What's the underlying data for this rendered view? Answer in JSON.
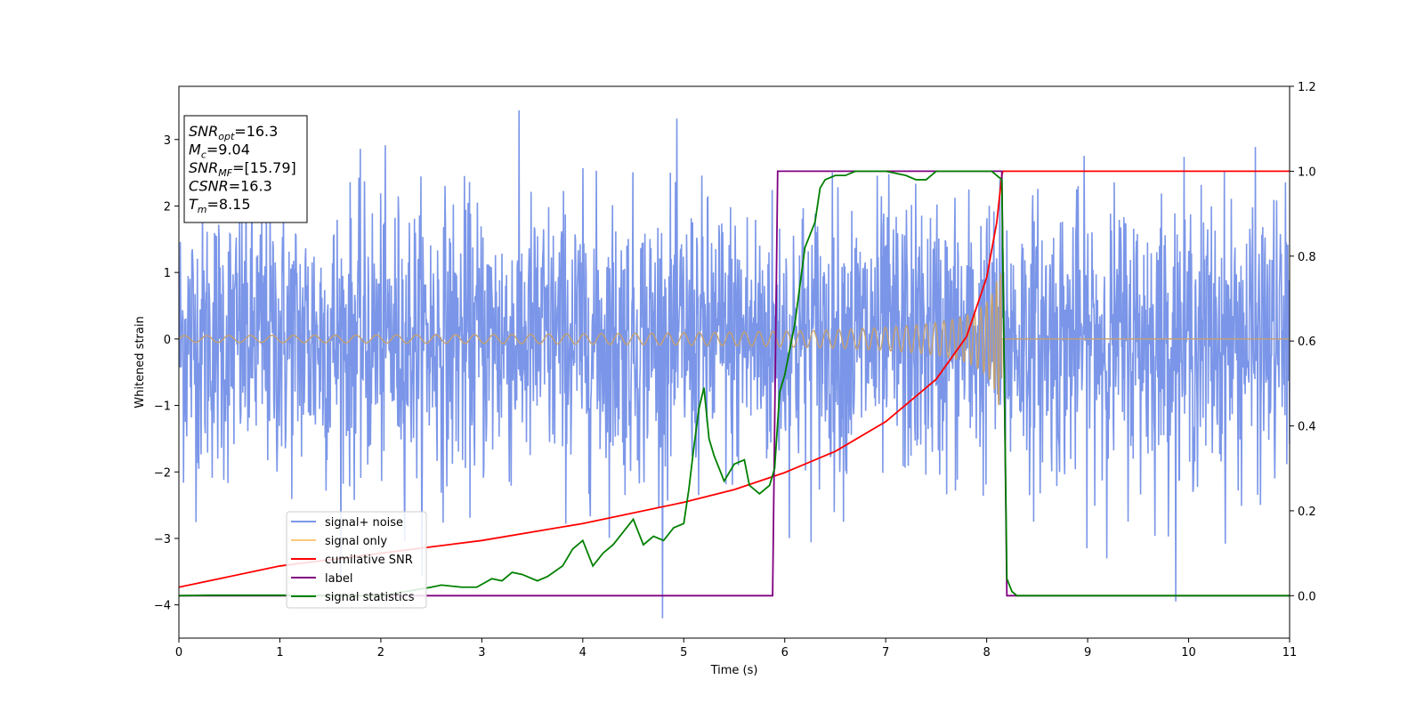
{
  "chart_data": {
    "type": "line",
    "xlabel": "Time (s)",
    "ylabel": "Whitened strain",
    "xlim": [
      0,
      11
    ],
    "ylim_left": [
      -4.5,
      3.8
    ],
    "ylim_right": [
      -0.1,
      1.2
    ],
    "x_ticks": [
      "0",
      "1",
      "2",
      "3",
      "4",
      "5",
      "6",
      "7",
      "8",
      "9",
      "10",
      "11"
    ],
    "y_left_ticks": [
      "−4",
      "−3",
      "−2",
      "−1",
      "0",
      "1",
      "2",
      "3"
    ],
    "y_right_ticks": [
      "0.0",
      "0.2",
      "0.4",
      "0.6",
      "0.8",
      "1.0",
      "1.2"
    ],
    "annotation_box": [
      {
        "base": "SNR",
        "sub": "opt",
        "value": "=16.3"
      },
      {
        "base": "M",
        "sub": "c",
        "value": "=9.04"
      },
      {
        "base": "SNR",
        "sub": "MF",
        "value": "=[15.79]"
      },
      {
        "base": "CSNR",
        "sub": "",
        "value": "=16.3"
      },
      {
        "base": "T",
        "sub": "m",
        "value": "=8.15"
      }
    ],
    "legend": {
      "placement": "lower-left",
      "entries": [
        {
          "label": "signal+ noise",
          "color": "#7b96e8"
        },
        {
          "label": "signal only",
          "color": "#ffc87a"
        },
        {
          "label": "cumilative SNR",
          "color": "#ff0000"
        },
        {
          "label": "label",
          "color": "#800080"
        },
        {
          "label": "signal statistics",
          "color": "#008000"
        }
      ]
    },
    "series": [
      {
        "name": "signal+ noise",
        "axis": "left",
        "color": "#7b96e8",
        "description_values": {
          "noise_sigma": 1.0,
          "x_start": 0,
          "x_end": 11,
          "samples": 2400
        }
      },
      {
        "name": "signal only",
        "axis": "left",
        "color": "#c4a070",
        "chirp": {
          "t_start": 0,
          "t_merge": 8.15,
          "amp_start": 0.05,
          "amp_merge": 1.0
        }
      },
      {
        "name": "cumilative SNR",
        "axis": "right",
        "color": "#ff0000",
        "x": [
          0,
          1,
          2,
          3,
          4,
          5,
          5.5,
          6,
          6.5,
          7,
          7.5,
          7.8,
          8.0,
          8.1,
          8.15,
          8.16,
          11
        ],
        "y": [
          0.02,
          0.07,
          0.1,
          0.13,
          0.17,
          0.22,
          0.25,
          0.29,
          0.34,
          0.41,
          0.51,
          0.61,
          0.75,
          0.88,
          0.99,
          1.0,
          1.0
        ]
      },
      {
        "name": "label",
        "axis": "right",
        "color": "#800080",
        "x": [
          0,
          5.88,
          5.93,
          8.15,
          8.2,
          11
        ],
        "y": [
          0,
          0,
          1,
          1,
          0,
          0
        ]
      },
      {
        "name": "signal statistics",
        "axis": "right",
        "color": "#008000",
        "x": [
          0,
          0.3,
          1,
          2,
          2.5,
          2.6,
          2.8,
          2.95,
          3.1,
          3.2,
          3.3,
          3.4,
          3.55,
          3.65,
          3.8,
          3.9,
          4.0,
          4.1,
          4.2,
          4.3,
          4.4,
          4.5,
          4.55,
          4.6,
          4.7,
          4.8,
          4.9,
          5.0,
          5.05,
          5.1,
          5.15,
          5.2,
          5.25,
          5.3,
          5.35,
          5.4,
          5.5,
          5.6,
          5.65,
          5.75,
          5.85,
          5.9,
          5.95,
          6.0,
          6.05,
          6.1,
          6.2,
          6.3,
          6.35,
          6.4,
          6.5,
          6.6,
          6.7,
          6.8,
          7.0,
          7.2,
          7.3,
          7.4,
          7.5,
          7.7,
          7.9,
          8.05,
          8.1,
          8.15,
          8.2,
          8.25,
          8.3,
          11
        ],
        "y": [
          0.0,
          0.001,
          0.001,
          0.0,
          0.02,
          0.025,
          0.02,
          0.02,
          0.04,
          0.035,
          0.055,
          0.05,
          0.035,
          0.045,
          0.07,
          0.11,
          0.13,
          0.07,
          0.1,
          0.12,
          0.15,
          0.18,
          0.15,
          0.12,
          0.14,
          0.13,
          0.16,
          0.17,
          0.25,
          0.35,
          0.44,
          0.49,
          0.37,
          0.33,
          0.3,
          0.27,
          0.31,
          0.32,
          0.26,
          0.24,
          0.26,
          0.3,
          0.48,
          0.52,
          0.58,
          0.64,
          0.82,
          0.88,
          0.96,
          0.98,
          0.99,
          0.99,
          1.0,
          1.0,
          1.0,
          0.99,
          0.98,
          0.98,
          1.0,
          1.0,
          1.0,
          1.0,
          0.99,
          0.98,
          0.04,
          0.01,
          0.0,
          0.0
        ]
      }
    ]
  }
}
